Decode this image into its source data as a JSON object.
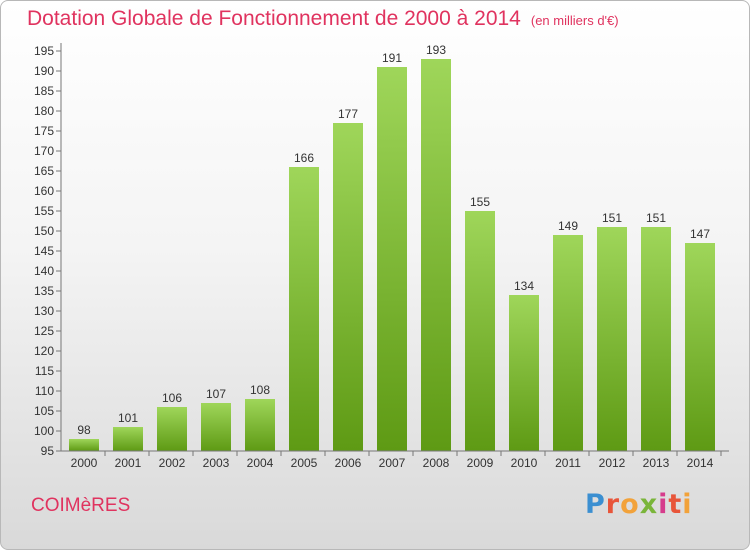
{
  "title": "Dotation Globale de Fonctionnement de 2000 à 2014",
  "unit_note": "(en milliers d'€)",
  "commune": "COIMèRES",
  "logo": "Proxiti",
  "colors": {
    "bar_top": "#9fd65a",
    "bar_bottom": "#5e9a14",
    "title": "#e0335f"
  },
  "chart_data": {
    "type": "bar",
    "title": "Dotation Globale de Fonctionnement de 2000 à 2014",
    "xlabel": "",
    "ylabel": "",
    "ylim": [
      95,
      195
    ],
    "ytick_step": 5,
    "grid": false,
    "categories": [
      "2000",
      "2001",
      "2002",
      "2003",
      "2004",
      "2005",
      "2006",
      "2007",
      "2008",
      "2009",
      "2010",
      "2011",
      "2012",
      "2013",
      "2014"
    ],
    "values": [
      98,
      101,
      106,
      107,
      108,
      166,
      177,
      191,
      193,
      155,
      134,
      149,
      151,
      151,
      147
    ]
  }
}
